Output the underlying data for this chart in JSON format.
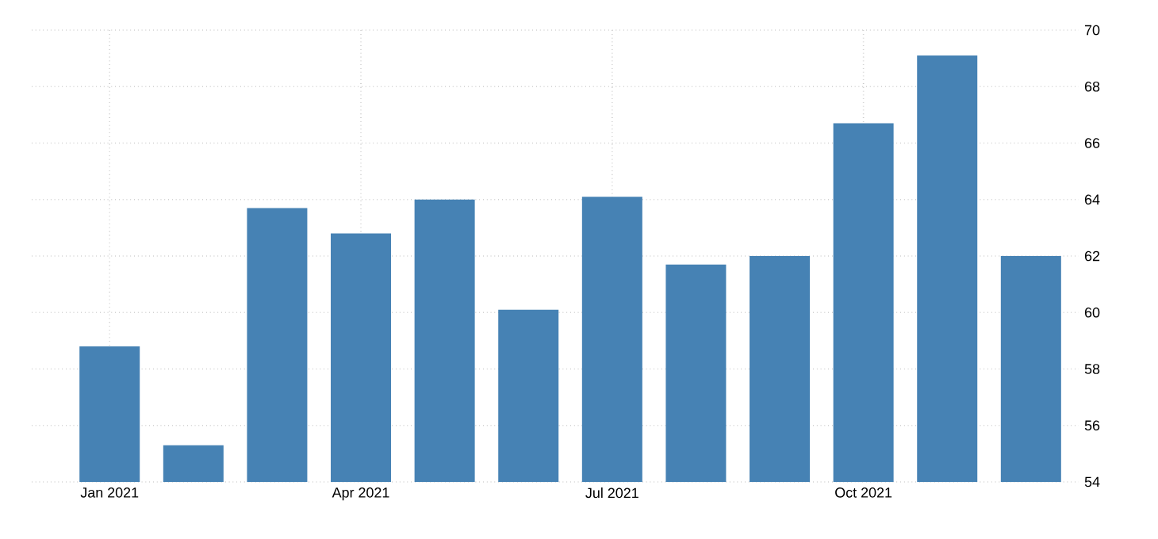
{
  "chart_data": {
    "type": "bar",
    "categories": [
      "Jan 2021",
      null,
      null,
      "Apr 2021",
      null,
      null,
      "Jul 2021",
      null,
      null,
      "Oct 2021",
      null,
      null
    ],
    "values": [
      58.8,
      55.3,
      63.7,
      62.8,
      64.0,
      60.1,
      64.1,
      61.7,
      62.0,
      66.7,
      69.1,
      62.0
    ],
    "color": "#4682b4",
    "ylim": [
      54,
      70
    ],
    "yticks": [
      54,
      56,
      58,
      60,
      62,
      64,
      66,
      68,
      70
    ],
    "grid": true
  }
}
